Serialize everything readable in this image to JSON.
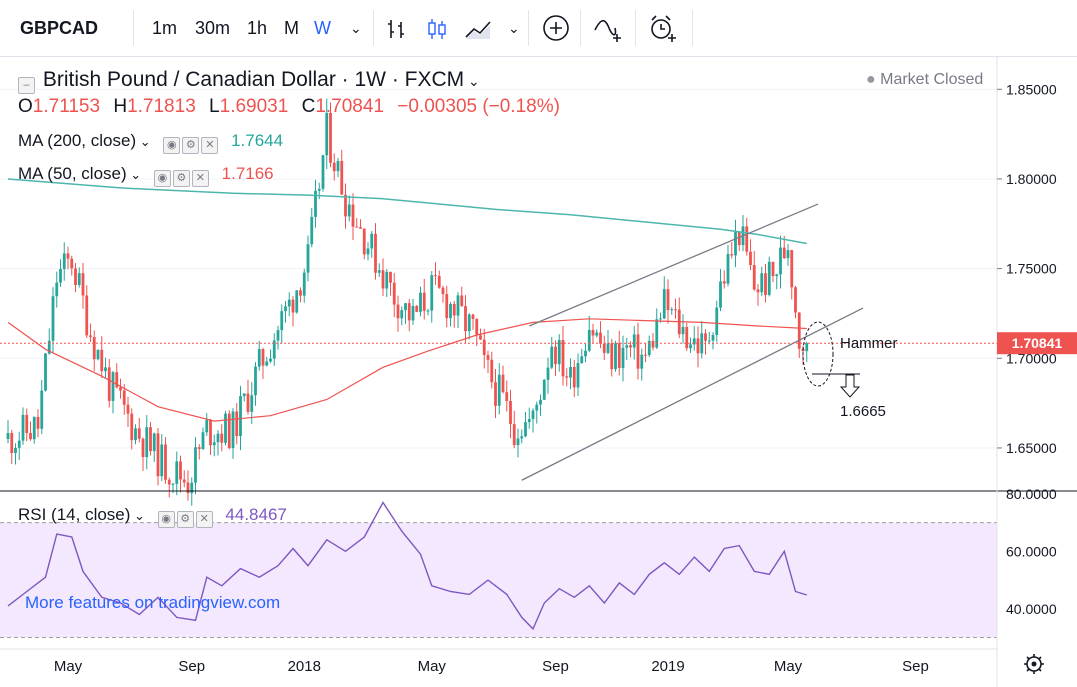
{
  "toolbar": {
    "symbol": "GBPCAD",
    "intervals": [
      "1m",
      "30m",
      "1h",
      "M",
      "W"
    ],
    "active_interval": "W"
  },
  "header": {
    "title": "British Pound / Canadian Dollar · 1W · FXCM",
    "status": "Market Closed",
    "ohlc": {
      "o": "1.71153",
      "h": "1.71813",
      "l": "1.69031",
      "c": "1.70841",
      "chg": "−0.00305 (−0.18%)"
    }
  },
  "indicators": {
    "ma200": {
      "label": "MA (200, close)",
      "value": "1.7644",
      "color": "#4db6ac"
    },
    "ma50": {
      "label": "MA (50, close)",
      "value": "1.7166",
      "color": "#ef5350"
    },
    "rsi": {
      "label": "RSI (14, close)",
      "value": "44.8467",
      "color": "#7e57c2"
    }
  },
  "watermark": "More features on tradingview.com",
  "annotations": {
    "hammer": "Hammer",
    "target": "1.6665"
  },
  "colors": {
    "up": "#26a69a",
    "down": "#ef5350"
  },
  "chart_data": {
    "type": "candlestick",
    "last_price": "1.70841",
    "price_axis": {
      "ticks": [
        "1.85000",
        "1.80000",
        "1.75000",
        "1.70000",
        "1.65000"
      ],
      "range": [
        1.626,
        1.868
      ]
    },
    "rsi_axis": {
      "ticks": [
        "80.0000",
        "60.0000",
        "40.0000"
      ],
      "range": [
        26,
        81
      ],
      "band": [
        30,
        70
      ]
    },
    "time_axis": {
      "labels": [
        "May",
        "Sep",
        "2018",
        "May",
        "Sep",
        "2019",
        "May",
        "Sep"
      ],
      "index": [
        16,
        49,
        79,
        113,
        146,
        176,
        208,
        242
      ]
    },
    "ma200": [
      [
        0,
        1.8
      ],
      [
        30,
        1.795
      ],
      [
        60,
        1.792
      ],
      [
        80,
        1.791
      ],
      [
        100,
        1.789
      ],
      [
        110,
        1.787
      ],
      [
        130,
        1.783
      ],
      [
        150,
        1.78
      ],
      [
        170,
        1.776
      ],
      [
        190,
        1.772
      ],
      [
        200,
        1.769
      ],
      [
        213,
        1.764
      ]
    ],
    "ma50": [
      [
        0,
        1.72
      ],
      [
        10,
        1.705
      ],
      [
        25,
        1.69
      ],
      [
        40,
        1.673
      ],
      [
        55,
        1.665
      ],
      [
        70,
        1.668
      ],
      [
        85,
        1.677
      ],
      [
        100,
        1.695
      ],
      [
        112,
        1.704
      ],
      [
        125,
        1.713
      ],
      [
        140,
        1.72
      ],
      [
        155,
        1.722
      ],
      [
        170,
        1.721
      ],
      [
        185,
        1.72
      ],
      [
        200,
        1.718
      ],
      [
        213,
        1.7166
      ]
    ],
    "channel": [
      [
        [
          137,
          1.632
        ],
        [
          228,
          1.728
        ]
      ],
      [
        [
          139,
          1.718
        ],
        [
          216,
          1.786
        ]
      ]
    ],
    "rsi": [
      [
        0,
        41
      ],
      [
        5,
        46
      ],
      [
        10,
        51
      ],
      [
        13,
        66
      ],
      [
        17,
        65
      ],
      [
        20,
        53
      ],
      [
        25,
        44
      ],
      [
        30,
        42
      ],
      [
        35,
        38
      ],
      [
        40,
        44
      ],
      [
        45,
        37
      ],
      [
        50,
        36
      ],
      [
        53,
        51
      ],
      [
        57,
        48
      ],
      [
        62,
        54
      ],
      [
        67,
        51
      ],
      [
        72,
        55
      ],
      [
        76,
        61
      ],
      [
        80,
        55
      ],
      [
        85,
        64
      ],
      [
        90,
        60
      ],
      [
        95,
        65
      ],
      [
        100,
        77
      ],
      [
        105,
        67
      ],
      [
        110,
        59
      ],
      [
        113,
        48
      ],
      [
        118,
        46
      ],
      [
        123,
        45
      ],
      [
        128,
        50
      ],
      [
        133,
        45
      ],
      [
        137,
        37
      ],
      [
        140,
        33
      ],
      [
        143,
        42
      ],
      [
        147,
        47
      ],
      [
        151,
        44
      ],
      [
        155,
        48
      ],
      [
        159,
        42
      ],
      [
        163,
        49
      ],
      [
        167,
        45
      ],
      [
        171,
        52
      ],
      [
        175,
        56
      ],
      [
        179,
        52
      ],
      [
        183,
        58
      ],
      [
        187,
        53
      ],
      [
        191,
        61
      ],
      [
        195,
        62
      ],
      [
        199,
        53
      ],
      [
        203,
        52
      ],
      [
        207,
        60
      ],
      [
        210,
        46
      ],
      [
        213,
        44.8
      ]
    ]
  }
}
